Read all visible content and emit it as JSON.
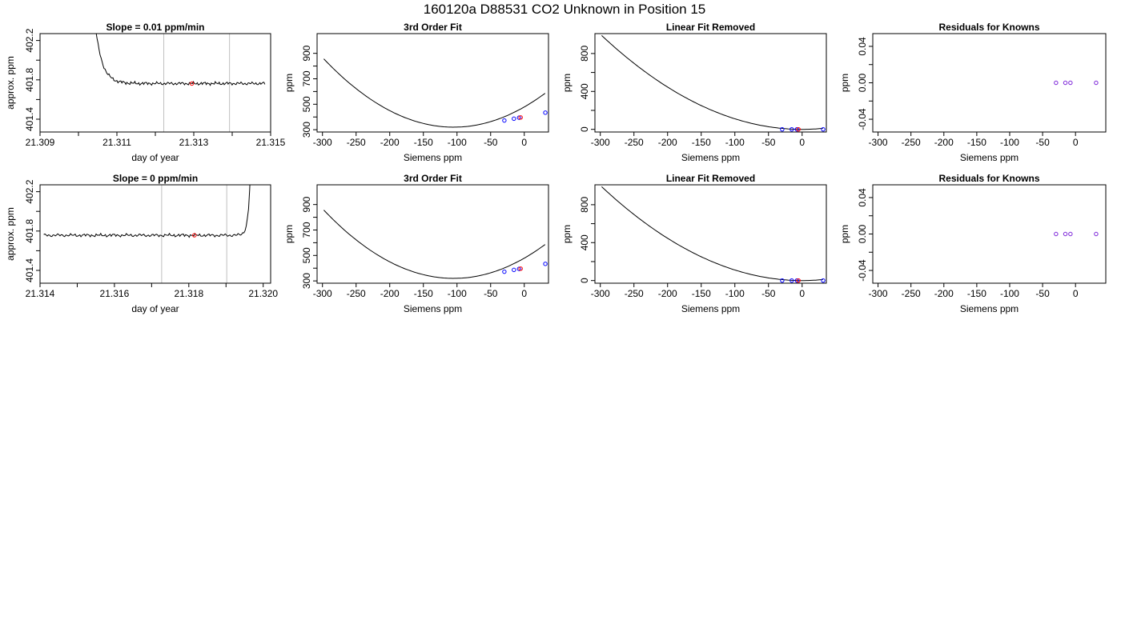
{
  "figure": {
    "title": "160120a     D88531   CO2 Unknown in Position  15"
  },
  "chart_data": [
    {
      "type": "line",
      "title": "Slope =  0.01  ppm/min",
      "xlabel": "day of year",
      "ylabel": "approx. ppm",
      "xlim": [
        21.309,
        21.315
      ],
      "ylim": [
        401.27,
        402.27
      ],
      "xticks": [
        21.309,
        21.31,
        21.311,
        21.312,
        21.313,
        21.314,
        21.315
      ],
      "xticklabels": [
        "21.309",
        "",
        "21.311",
        "",
        "21.313",
        "",
        "21.315"
      ],
      "yticks": [
        401.4,
        401.6,
        401.8,
        402.0,
        402.2
      ],
      "yticklabels": [
        "401.4",
        "",
        "401.8",
        "",
        "402.2"
      ],
      "vlines": [
        21.31222,
        21.31393
      ],
      "trace": {
        "start": 21.3102,
        "end": 21.31485,
        "level": 401.763,
        "transient": "start"
      },
      "marker": {
        "x": 21.31295,
        "y": 401.762,
        "color": "#ff0000"
      },
      "grid": false
    },
    {
      "type": "line",
      "title": "3rd Order Fit",
      "xlabel": "Siemens ppm",
      "ylabel": "ppm",
      "xlim": [
        -308,
        36
      ],
      "ylim": [
        282,
        1055
      ],
      "xticks": [
        -300,
        -250,
        -200,
        -150,
        -100,
        -50,
        0
      ],
      "xticklabels": [
        "-300",
        "-250",
        "-200",
        "-150",
        "-100",
        "-50",
        "0"
      ],
      "yticks": [
        300,
        400,
        500,
        600,
        700,
        800,
        900
      ],
      "yticklabels": [
        "300",
        "",
        "500",
        "",
        "700",
        "",
        "900"
      ],
      "curve": {
        "vertex_x": -105,
        "vertex_y": 320,
        "a": 0.0144,
        "x_from": -298,
        "x_to": 31
      },
      "points": {
        "x": [
          -29.6,
          -15.4,
          -7.7,
          31.3
        ],
        "y": [
          372.2,
          386.5,
          394.3,
          433.9
        ],
        "color": "#0000ff"
      },
      "marker": {
        "x": -5.4,
        "y": 396.4,
        "color": "#ff0000"
      },
      "grid": false
    },
    {
      "type": "line",
      "title": "Linear Fit Removed",
      "xlabel": "Siemens ppm",
      "ylabel": "ppm",
      "xlim": [
        -308,
        36
      ],
      "ylim": [
        -28,
        1010
      ],
      "xticks": [
        -300,
        -250,
        -200,
        -150,
        -100,
        -50,
        0
      ],
      "xticklabels": [
        "-300",
        "-250",
        "-200",
        "-150",
        "-100",
        "-50",
        "0"
      ],
      "yticks": [
        0,
        200,
        400,
        600,
        800
      ],
      "yticklabels": [
        "0",
        "",
        "400",
        "",
        "800"
      ],
      "curve": {
        "vertex_x": 0,
        "vertex_y": 0,
        "a": 0.01115,
        "x_from": -298,
        "x_to": 31
      },
      "points": {
        "x": [
          -29.6,
          -15.4,
          -7.7,
          31.3
        ],
        "y": [
          0,
          0,
          0,
          0
        ],
        "color": "#0000ff"
      },
      "marker": {
        "x": -5.4,
        "y": 0,
        "color": "#ff0000"
      },
      "grid": false
    },
    {
      "type": "scatter",
      "title": "Residuals for Knowns",
      "xlabel": "Siemens ppm",
      "ylabel": "ppm",
      "xlim": [
        -308,
        46
      ],
      "ylim": [
        -0.054,
        0.054
      ],
      "xticks": [
        -300,
        -250,
        -200,
        -150,
        -100,
        -50,
        0
      ],
      "xticklabels": [
        "-300",
        "-250",
        "-200",
        "-150",
        "-100",
        "-50",
        "0"
      ],
      "yticks": [
        -0.04,
        -0.02,
        0.0,
        0.02,
        0.04
      ],
      "yticklabels": [
        "-0.04",
        "",
        "0.00",
        "",
        "0.04"
      ],
      "points": {
        "x": [
          -29.6,
          -15.4,
          -7.7,
          31.3
        ],
        "y": [
          0,
          0,
          0,
          0
        ],
        "color": "#7b22d8"
      },
      "grid": false
    },
    {
      "type": "line",
      "title": "Slope =  0  ppm/min",
      "xlabel": "day of year",
      "ylabel": "approx. ppm",
      "xlim": [
        21.314,
        21.3202
      ],
      "ylim": [
        401.27,
        402.27
      ],
      "xticks": [
        21.314,
        21.315,
        21.316,
        21.317,
        21.318,
        21.319,
        21.32
      ],
      "xticklabels": [
        "21.314",
        "",
        "21.316",
        "",
        "21.318",
        "",
        "21.320"
      ],
      "yticks": [
        401.4,
        401.6,
        401.8,
        402.0,
        402.2
      ],
      "yticklabels": [
        "401.4",
        "",
        "401.8",
        "",
        "402.2"
      ],
      "vlines": [
        21.31727,
        21.31902
      ],
      "trace": {
        "start": 21.3141,
        "end": 21.31973,
        "level": 401.757,
        "transient": "end"
      },
      "marker": {
        "x": 21.31815,
        "y": 401.757,
        "color": "#ff0000"
      },
      "grid": false
    },
    {
      "type": "line",
      "title": "3rd Order Fit",
      "xlabel": "Siemens ppm",
      "ylabel": "ppm",
      "xlim": [
        -308,
        36
      ],
      "ylim": [
        282,
        1055
      ],
      "xticks": [
        -300,
        -250,
        -200,
        -150,
        -100,
        -50,
        0
      ],
      "xticklabels": [
        "-300",
        "-250",
        "-200",
        "-150",
        "-100",
        "-50",
        "0"
      ],
      "yticks": [
        300,
        400,
        500,
        600,
        700,
        800,
        900
      ],
      "yticklabels": [
        "300",
        "",
        "500",
        "",
        "700",
        "",
        "900"
      ],
      "curve": {
        "vertex_x": -105,
        "vertex_y": 320,
        "a": 0.0144,
        "x_from": -298,
        "x_to": 31
      },
      "points": {
        "x": [
          -29.6,
          -15.4,
          -7.7,
          31.3
        ],
        "y": [
          372.2,
          386.5,
          394.3,
          433.9
        ],
        "color": "#0000ff"
      },
      "marker": {
        "x": -5.4,
        "y": 396.4,
        "color": "#ff0000"
      },
      "grid": false
    },
    {
      "type": "line",
      "title": "Linear Fit Removed",
      "xlabel": "Siemens ppm",
      "ylabel": "ppm",
      "xlim": [
        -308,
        36
      ],
      "ylim": [
        -28,
        1010
      ],
      "xticks": [
        -300,
        -250,
        -200,
        -150,
        -100,
        -50,
        0
      ],
      "xticklabels": [
        "-300",
        "-250",
        "-200",
        "-150",
        "-100",
        "-50",
        "0"
      ],
      "yticks": [
        0,
        200,
        400,
        600,
        800
      ],
      "yticklabels": [
        "0",
        "",
        "400",
        "",
        "800"
      ],
      "curve": {
        "vertex_x": 0,
        "vertex_y": 0,
        "a": 0.01115,
        "x_from": -298,
        "x_to": 31
      },
      "points": {
        "x": [
          -29.6,
          -15.4,
          -7.7,
          31.3
        ],
        "y": [
          0,
          0,
          0,
          0
        ],
        "color": "#0000ff"
      },
      "marker": {
        "x": -5.4,
        "y": 0,
        "color": "#ff0000"
      },
      "grid": false
    },
    {
      "type": "scatter",
      "title": "Residuals for Knowns",
      "xlabel": "Siemens ppm",
      "ylabel": "ppm",
      "xlim": [
        -308,
        46
      ],
      "ylim": [
        -0.054,
        0.054
      ],
      "xticks": [
        -300,
        -250,
        -200,
        -150,
        -100,
        -50,
        0
      ],
      "xticklabels": [
        "-300",
        "-250",
        "-200",
        "-150",
        "-100",
        "-50",
        "0"
      ],
      "yticks": [
        -0.04,
        -0.02,
        0.0,
        0.02,
        0.04
      ],
      "yticklabels": [
        "-0.04",
        "",
        "0.00",
        "",
        "0.04"
      ],
      "points": {
        "x": [
          -29.6,
          -15.4,
          -7.7,
          31.3
        ],
        "y": [
          0,
          0,
          0,
          0
        ],
        "color": "#7b22d8"
      },
      "grid": false
    }
  ]
}
